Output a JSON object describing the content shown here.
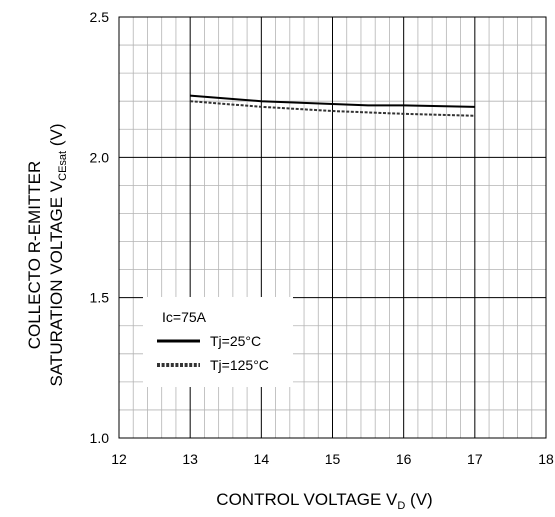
{
  "chart_data": {
    "type": "line",
    "title": "",
    "xlabel": {
      "main": "CONTROL VOLTAGE V",
      "sub": "D",
      "unit": " (V)"
    },
    "ylabel": {
      "line1": "COLLECTO R-EMITTER",
      "line2_main": "SATURATION VOLTAGE V",
      "line2_sub": "CEsat",
      "line2_unit": " (V)"
    },
    "xlim": [
      12,
      18
    ],
    "ylim": [
      1.0,
      2.5
    ],
    "x_ticks": [
      "12",
      "13",
      "14",
      "15",
      "16",
      "17",
      "18"
    ],
    "y_ticks": [
      "1.0",
      "1.5",
      "2.0",
      "2.5"
    ],
    "grid": true,
    "legend": {
      "header": "Ic=75A",
      "placement": "lower-left"
    },
    "series": [
      {
        "name": "Tj=25°C",
        "style": "solid",
        "color": "#000000",
        "x": [
          13,
          14,
          15,
          15.5,
          16,
          17
        ],
        "y": [
          2.22,
          2.2,
          2.19,
          2.185,
          2.185,
          2.18
        ]
      },
      {
        "name": "Tj=125°C",
        "style": "dotted",
        "color": "#333333",
        "x": [
          13,
          14,
          15,
          16,
          17
        ],
        "y": [
          2.2,
          2.18,
          2.165,
          2.155,
          2.148
        ]
      }
    ]
  }
}
